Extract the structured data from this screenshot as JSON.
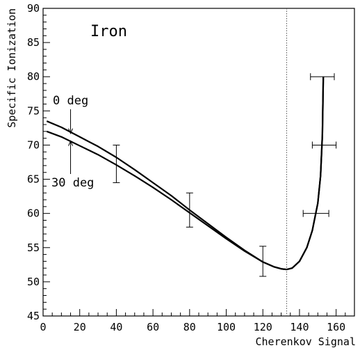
{
  "chart_data": {
    "type": "line",
    "title": "Iron",
    "xlabel": "Cherenkov Signal",
    "ylabel": "Specific Ionization",
    "xlim": [
      0,
      170
    ],
    "ylim": [
      45,
      90
    ],
    "x_ticks": [
      "0",
      "20",
      "40",
      "60",
      "80",
      "100",
      "120",
      "140",
      "160"
    ],
    "y_ticks": [
      "45",
      "50",
      "55",
      "60",
      "65",
      "70",
      "75",
      "80",
      "85",
      "90"
    ],
    "grid": false,
    "legend": "none",
    "vertical_reference_line": {
      "x": 133,
      "style": "dotted"
    },
    "annotations": [
      {
        "text": "0 deg",
        "points_to": {
          "x": 15,
          "y": 71.5
        }
      },
      {
        "text": "30 deg",
        "points_to": {
          "x": 15,
          "y": 70.8
        }
      }
    ],
    "series": [
      {
        "x": [
          2,
          10,
          20,
          30,
          40,
          50,
          60,
          70,
          80,
          90,
          100,
          110,
          120,
          126,
          130,
          133,
          136,
          140,
          144,
          147,
          150,
          151.5,
          152.5,
          153
        ],
        "y": [
          73.5,
          72.6,
          71.2,
          69.8,
          68.2,
          66.4,
          64.5,
          62.6,
          60.5,
          58.5,
          56.5,
          54.6,
          52.9,
          52.2,
          51.9,
          51.8,
          52.0,
          53.0,
          55.0,
          57.5,
          61.5,
          65.5,
          71.5,
          80.0
        ]
      },
      {
        "x": [
          2,
          10,
          20,
          30,
          40,
          50,
          60,
          70,
          80,
          90,
          100,
          110,
          120,
          126,
          130,
          133,
          136,
          140,
          144,
          147,
          150,
          151.5,
          152.5,
          153
        ],
        "y": [
          72.0,
          71.2,
          69.9,
          68.6,
          67.1,
          65.5,
          63.8,
          62.0,
          60.1,
          58.2,
          56.3,
          54.5,
          52.9,
          52.2,
          51.9,
          51.8,
          52.0,
          53.0,
          55.0,
          57.5,
          61.5,
          65.5,
          71.5,
          80.0
        ]
      }
    ],
    "error_bars": [
      {
        "x": 40,
        "y": 67.3,
        "y_err": [
          64.5,
          70.0
        ]
      },
      {
        "x": 80,
        "y": 60.5,
        "y_err": [
          58.0,
          63.0
        ]
      },
      {
        "x": 120,
        "y": 53.0,
        "y_err": [
          50.8,
          55.2
        ]
      },
      {
        "y": 80,
        "x_err": [
          146,
          159
        ]
      },
      {
        "y": 70,
        "x_err": [
          147,
          160
        ]
      },
      {
        "y": 60,
        "x_err": [
          142,
          156
        ]
      }
    ]
  }
}
